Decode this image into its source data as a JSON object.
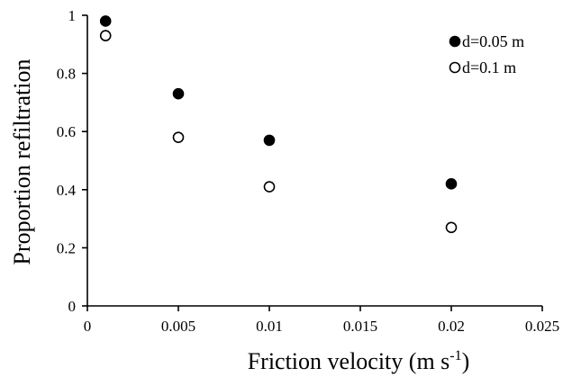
{
  "chart_data": {
    "type": "scatter",
    "title": "",
    "xlabel": "Friction velocity (m s",
    "xlabel_exponent": "-1",
    "xlabel_close": ")",
    "ylabel": "Proportion refiltration",
    "xlim": [
      0,
      0.025
    ],
    "ylim": [
      0,
      1
    ],
    "xticks": [
      0,
      0.005,
      0.01,
      0.015,
      0.02,
      0.025
    ],
    "xtick_labels": [
      "0",
      "0.005",
      "0.01",
      "0.015",
      "0.02",
      "0.025"
    ],
    "yticks": [
      0,
      0.2,
      0.4,
      0.6,
      0.8,
      1
    ],
    "ytick_labels": [
      "0",
      "0.2",
      "0.4",
      "0.6",
      "0.8",
      "1"
    ],
    "grid": false,
    "legend_position": "top-right",
    "series": [
      {
        "name": "d=0.05 m",
        "marker": "filled-circle",
        "color": "#000000",
        "points": [
          {
            "x": 0.001,
            "y": 0.98
          },
          {
            "x": 0.005,
            "y": 0.73
          },
          {
            "x": 0.01,
            "y": 0.57
          },
          {
            "x": 0.02,
            "y": 0.42
          }
        ]
      },
      {
        "name": "d=0.1 m",
        "marker": "open-circle",
        "color": "#000000",
        "points": [
          {
            "x": 0.001,
            "y": 0.93
          },
          {
            "x": 0.005,
            "y": 0.58
          },
          {
            "x": 0.01,
            "y": 0.41
          },
          {
            "x": 0.02,
            "y": 0.27
          }
        ]
      }
    ]
  }
}
